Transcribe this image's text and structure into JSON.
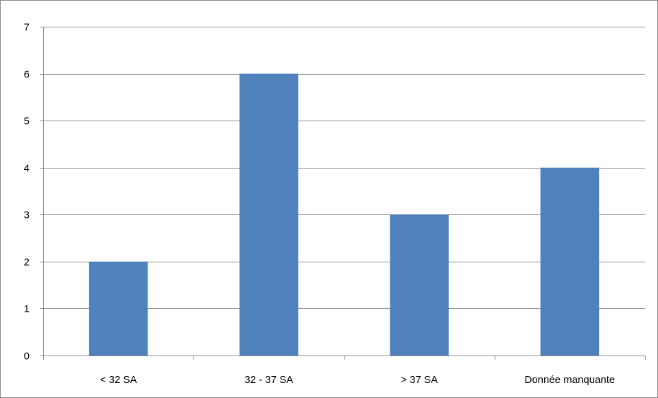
{
  "chart_data": {
    "type": "bar",
    "title": "",
    "xlabel": "",
    "ylabel": "",
    "categories": [
      "< 32 SA",
      "32 - 37 SA",
      "> 37 SA",
      "Donnée manquante"
    ],
    "values": [
      2,
      6,
      3,
      4
    ],
    "ylim": [
      0,
      7
    ],
    "yticks": [
      0,
      1,
      2,
      3,
      4,
      5,
      6,
      7
    ],
    "grid": true,
    "legend": "none",
    "bar_color": "#4F81BD",
    "grid_color": "#868686"
  }
}
